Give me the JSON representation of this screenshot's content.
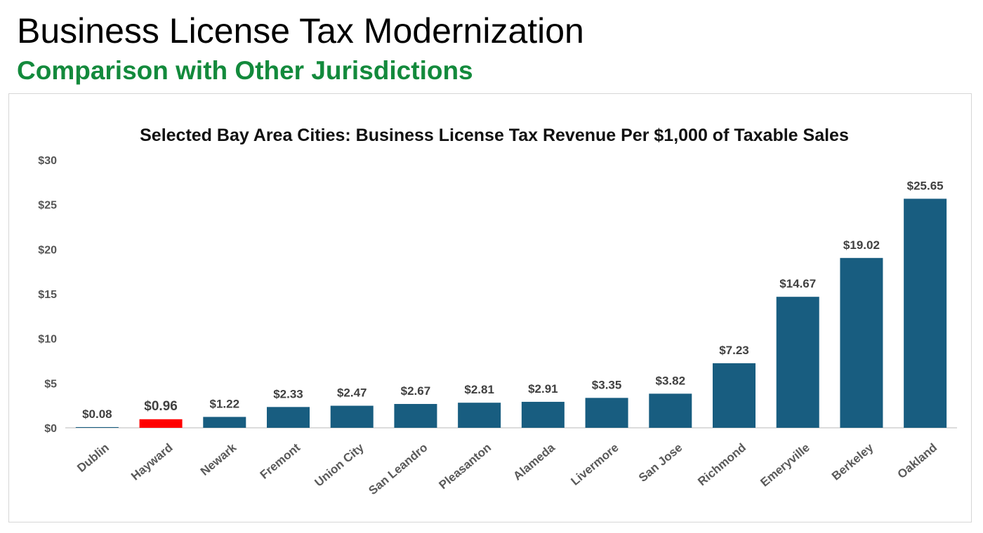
{
  "slide": {
    "title": "Business License Tax Modernization",
    "subtitle": "Comparison with Other Jurisdictions"
  },
  "colors": {
    "bar": "#185d80",
    "highlight": "#ff0000",
    "subtitle": "#138a3c"
  },
  "chart_data": {
    "type": "bar",
    "title": "Selected Bay Area Cities:  Business License Tax Revenue Per $1,000 of Taxable Sales",
    "xlabel": "",
    "ylabel": "",
    "ylim": [
      0,
      30
    ],
    "yticks": [
      0,
      5,
      10,
      15,
      20,
      25,
      30
    ],
    "ytick_labels": [
      "$0",
      "$5",
      "$10",
      "$15",
      "$20",
      "$25",
      "$30"
    ],
    "categories": [
      "Dublin",
      "Hayward",
      "Newark",
      "Fremont",
      "Union City",
      "San Leandro",
      "Pleasanton",
      "Alameda",
      "Livermore",
      "San Jose",
      "Richmond",
      "Emeryville",
      "Berkeley",
      "Oakland"
    ],
    "values": [
      0.08,
      0.96,
      1.22,
      2.33,
      2.47,
      2.67,
      2.81,
      2.91,
      3.35,
      3.82,
      7.23,
      14.67,
      19.02,
      25.65
    ],
    "data_labels": [
      "$0.08",
      "$0.96",
      "$1.22",
      "$2.33",
      "$2.47",
      "$2.67",
      "$2.81",
      "$2.91",
      "$3.35",
      "$3.82",
      "$7.23",
      "$14.67",
      "$19.02",
      "$25.65"
    ],
    "highlight_category": "Hayward",
    "grid": false,
    "legend": "none"
  }
}
